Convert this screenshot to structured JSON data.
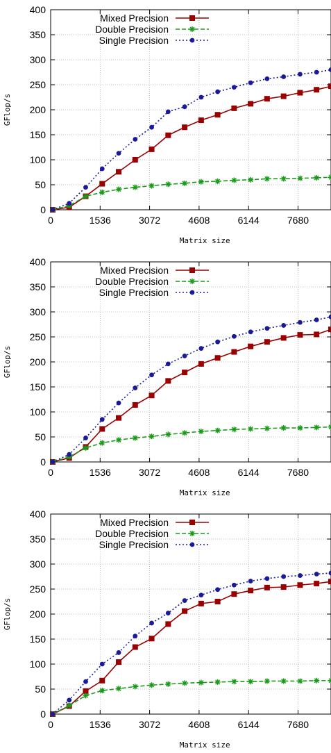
{
  "chart_data": [
    {
      "type": "line",
      "xlabel": "Matrix size",
      "ylabel": "GFlop/s",
      "xlim": [
        0,
        8704
      ],
      "ylim": [
        0,
        400
      ],
      "xticks": [
        0,
        1536,
        3072,
        4608,
        6144,
        7680
      ],
      "yticks": [
        0,
        50,
        100,
        150,
        200,
        250,
        300,
        350,
        400
      ],
      "grid": true,
      "legend_position": "top-left",
      "x": [
        64,
        576,
        1088,
        1600,
        2112,
        2624,
        3136,
        3648,
        4160,
        4672,
        5184,
        5696,
        6208,
        6720,
        7232,
        7744,
        8256,
        8704
      ],
      "series": [
        {
          "name": "Mixed Precision",
          "color": "#990000",
          "marker": "square",
          "dash": "solid",
          "values": [
            0,
            5,
            27,
            52,
            76,
            100,
            121,
            149,
            165,
            179,
            190,
            203,
            212,
            222,
            227,
            234,
            240,
            247
          ]
        },
        {
          "name": "Double Precision",
          "color": "#1a9a1a",
          "marker": "star",
          "dash": "dashed",
          "values": [
            0,
            8,
            27,
            35,
            41,
            45,
            48,
            51,
            53,
            56,
            57,
            59,
            60,
            62,
            62,
            63,
            64,
            65
          ]
        },
        {
          "name": "Single Precision",
          "color": "#1a1a99",
          "marker": "circle",
          "dash": "dotted",
          "values": [
            0,
            13,
            45,
            82,
            113,
            141,
            165,
            196,
            206,
            225,
            236,
            245,
            254,
            262,
            266,
            271,
            275,
            280
          ]
        }
      ]
    },
    {
      "type": "line",
      "xlabel": "Matrix size",
      "ylabel": "GFlop/s",
      "xlim": [
        0,
        8704
      ],
      "ylim": [
        0,
        400
      ],
      "xticks": [
        0,
        1536,
        3072,
        4608,
        6144,
        7680
      ],
      "yticks": [
        0,
        50,
        100,
        150,
        200,
        250,
        300,
        350,
        400
      ],
      "grid": true,
      "legend_position": "top-left",
      "x": [
        64,
        576,
        1088,
        1600,
        2112,
        2624,
        3136,
        3648,
        4160,
        4672,
        5184,
        5696,
        6208,
        6720,
        7232,
        7744,
        8256,
        8704
      ],
      "series": [
        {
          "name": "Mixed Precision",
          "color": "#990000",
          "marker": "square",
          "dash": "solid",
          "values": [
            0,
            8,
            30,
            66,
            88,
            114,
            133,
            162,
            179,
            196,
            208,
            220,
            231,
            240,
            248,
            254,
            255,
            265
          ]
        },
        {
          "name": "Double Precision",
          "color": "#1a9a1a",
          "marker": "star",
          "dash": "dashed",
          "values": [
            0,
            10,
            28,
            38,
            44,
            48,
            51,
            55,
            58,
            61,
            63,
            65,
            66,
            67,
            68,
            68,
            69,
            70
          ]
        },
        {
          "name": "Single Precision",
          "color": "#1a1a99",
          "marker": "circle",
          "dash": "dotted",
          "values": [
            0,
            15,
            48,
            85,
            118,
            148,
            174,
            196,
            212,
            227,
            240,
            251,
            260,
            267,
            273,
            279,
            284,
            290
          ]
        }
      ]
    },
    {
      "type": "line",
      "xlabel": "Matrix size",
      "ylabel": "GFlop/s",
      "xlim": [
        0,
        8704
      ],
      "ylim": [
        0,
        400
      ],
      "xticks": [
        0,
        1536,
        3072,
        4608,
        6144,
        7680
      ],
      "yticks": [
        0,
        50,
        100,
        150,
        200,
        250,
        300,
        350,
        400
      ],
      "grid": true,
      "legend_position": "top-left",
      "x": [
        64,
        576,
        1088,
        1600,
        2112,
        2624,
        3136,
        3648,
        4160,
        4672,
        5184,
        5696,
        6208,
        6720,
        7232,
        7744,
        8256,
        8704
      ],
      "series": [
        {
          "name": "Mixed Precision",
          "color": "#990000",
          "marker": "square",
          "dash": "solid",
          "values": [
            0,
            16,
            46,
            67,
            104,
            134,
            151,
            180,
            206,
            221,
            225,
            240,
            247,
            253,
            254,
            258,
            261,
            265
          ]
        },
        {
          "name": "Double Precision",
          "color": "#1a9a1a",
          "marker": "star",
          "dash": "dashed",
          "values": [
            0,
            17,
            37,
            47,
            51,
            55,
            58,
            60,
            62,
            63,
            64,
            65,
            65,
            66,
            66,
            66,
            67,
            67
          ]
        },
        {
          "name": "Single Precision",
          "color": "#1a1a99",
          "marker": "circle",
          "dash": "dotted",
          "values": [
            0,
            28,
            65,
            100,
            123,
            156,
            182,
            202,
            227,
            238,
            249,
            258,
            266,
            271,
            275,
            277,
            280,
            282
          ]
        }
      ]
    }
  ]
}
